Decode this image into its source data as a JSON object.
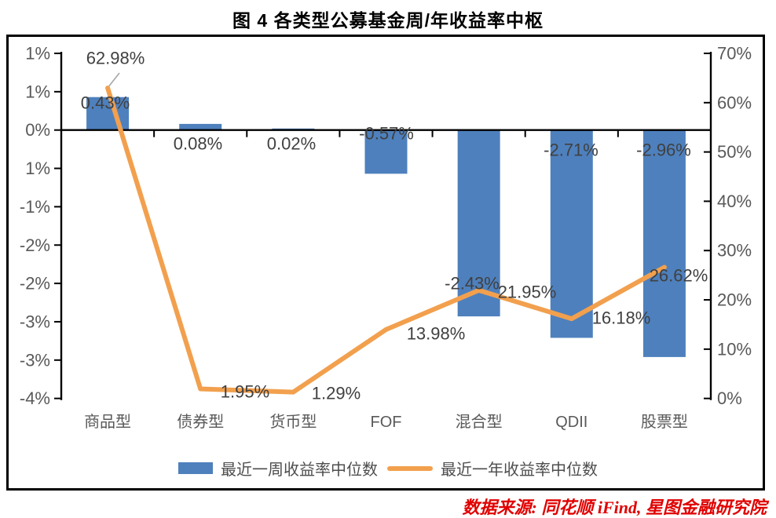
{
  "figure": {
    "title": "图 4 各类型公募基金周/年收益率中枢",
    "source": "数据来源: 同花顺 iFind, 星图金融研究院"
  },
  "legend": [
    {
      "type": "bar",
      "label": "最近一周收益率中位数",
      "color": "#4E80BD"
    },
    {
      "type": "line",
      "label": "最近一年收益率中位数",
      "color": "#F2A04E"
    }
  ],
  "colors": {
    "bar": "#4E80BD",
    "line": "#F2A04E",
    "axis": "#000000",
    "axis_label": "#595959",
    "data_label": "#404040",
    "leader": "#a6a6a6",
    "source_text": "#e00000"
  },
  "chart_data": {
    "type": "combo",
    "title": "图 4 各类型公募基金周/年收益率中枢",
    "categories": [
      "商品型",
      "债券型",
      "货币型",
      "FOF",
      "混合型",
      "QDII",
      "股票型"
    ],
    "series": [
      {
        "name": "最近一周收益率中位数",
        "type": "bar",
        "axis": "left",
        "color": "#4E80BD",
        "values": [
          0.43,
          0.08,
          0.02,
          -0.57,
          -2.43,
          -2.71,
          -2.96
        ],
        "labels": [
          "0.43%",
          "0.08%",
          "0.02%",
          "-0.57%",
          "-2.43%",
          "-2.71%",
          "-2.96%"
        ]
      },
      {
        "name": "最近一年收益率中位数",
        "type": "line",
        "axis": "right",
        "color": "#F2A04E",
        "values": [
          62.98,
          1.95,
          1.29,
          13.98,
          21.95,
          16.18,
          26.62
        ],
        "labels": [
          "62.98%",
          "1.95%",
          "1.29%",
          "13.98%",
          "21.95%",
          "16.18%",
          "26.62%"
        ]
      }
    ],
    "left_axis": {
      "tick_labels": [
        "1%",
        "1%",
        "0%",
        "1%",
        "-1%",
        "-2%",
        "-2%",
        "-3%",
        "-3%",
        "-4%"
      ],
      "min": -3.5,
      "max": 1.0,
      "step": 0.5
    },
    "right_axis": {
      "tick_labels": [
        "70%",
        "60%",
        "50%",
        "40%",
        "30%",
        "20%",
        "10%",
        "0%"
      ],
      "min": 0,
      "max": 70,
      "step": 10
    },
    "grid": false,
    "legend_position": "bottom"
  }
}
